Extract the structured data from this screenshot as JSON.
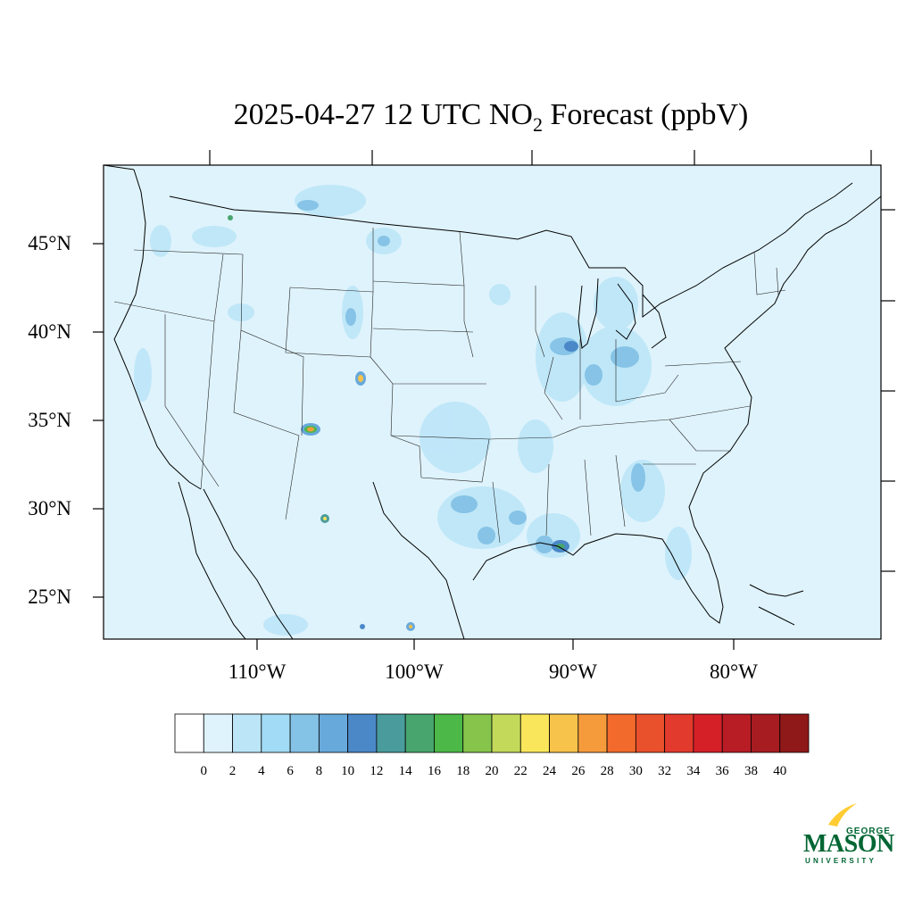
{
  "title": {
    "prefix": "2025-04-27 12 UTC NO",
    "subscript": "2",
    "suffix": " Forecast (ppbV)"
  },
  "map": {
    "region": "Contiguous United States",
    "background_color": "#dff3fc",
    "lat_labels": [
      {
        "value": 45,
        "text": "45°N"
      },
      {
        "value": 40,
        "text": "40°N"
      },
      {
        "value": 35,
        "text": "35°N"
      },
      {
        "value": 30,
        "text": "30°N"
      },
      {
        "value": 25,
        "text": "25°N"
      }
    ],
    "lon_labels": [
      {
        "value": -110,
        "text": "110°W"
      },
      {
        "value": -100,
        "text": "100°W"
      },
      {
        "value": -90,
        "text": "90°W"
      },
      {
        "value": -80,
        "text": "80°W"
      }
    ]
  },
  "colorbar": {
    "ticks": [
      "0",
      "2",
      "4",
      "6",
      "8",
      "10",
      "12",
      "14",
      "16",
      "18",
      "20",
      "22",
      "24",
      "26",
      "28",
      "30",
      "32",
      "34",
      "36",
      "38",
      "40"
    ],
    "colors": [
      "#ffffff",
      "#dff3fc",
      "#bce6f8",
      "#a1dbf5",
      "#84c2e6",
      "#68a9dc",
      "#4a88c8",
      "#4a9c9c",
      "#48a56e",
      "#4cb848",
      "#86c44c",
      "#c3d95a",
      "#f9e65a",
      "#f8c34a",
      "#f69b3c",
      "#f26a2c",
      "#e9502c",
      "#e23a2c",
      "#d52028",
      "#b81c24",
      "#a61c20",
      "#8f1818"
    ]
  },
  "logo": {
    "line1": "GEORGE",
    "line2": "MASON",
    "line3": "UNIVERSITY",
    "green": "#006633",
    "gold": "#ffcc33"
  }
}
